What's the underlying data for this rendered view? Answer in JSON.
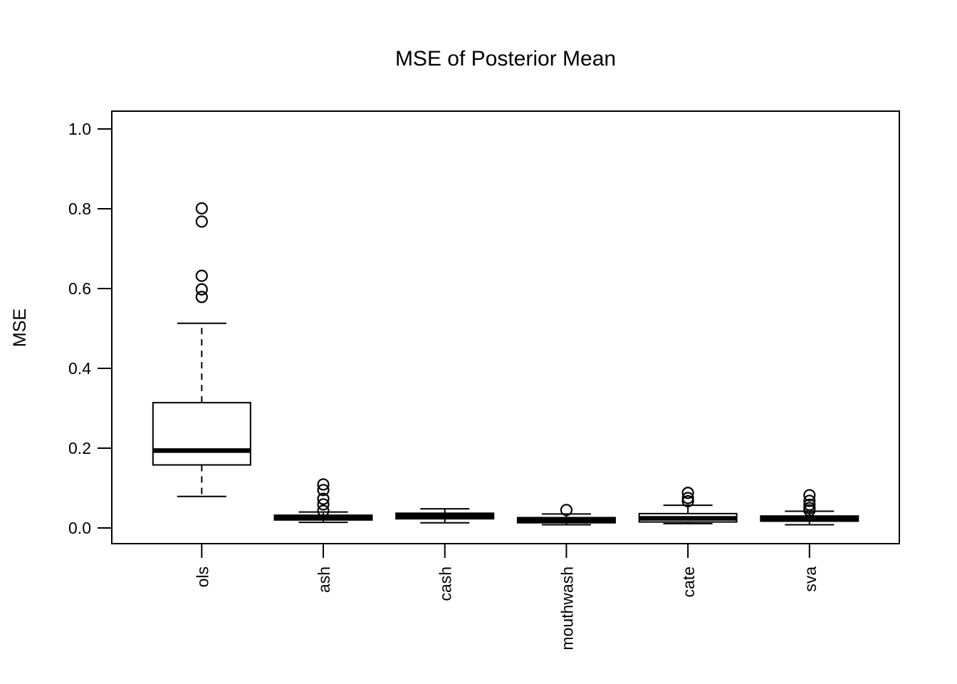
{
  "chart_data": {
    "type": "boxplot",
    "title": "MSE of Posterior Mean",
    "xlabel": "",
    "ylabel": "MSE",
    "ylim": [
      0.0,
      1.0
    ],
    "yticks": [
      0.0,
      0.2,
      0.4,
      0.6,
      0.8,
      1.0
    ],
    "ytick_labels": [
      "0.0",
      "0.2",
      "0.4",
      "0.6",
      "0.8",
      "1.0"
    ],
    "grid": false,
    "legend": "none",
    "frame_color": "#000000",
    "box_fill_color": "#ffffff",
    "categories": [
      "ols",
      "ash",
      "cash",
      "mouthwash",
      "cate",
      "sva"
    ],
    "series": [
      {
        "name": "ols",
        "whisker_low": 0.079,
        "q1": 0.158,
        "median": 0.194,
        "q3": 0.314,
        "whisker_high": 0.513,
        "outliers": [
          0.579,
          0.598,
          0.632,
          0.768,
          0.801
        ]
      },
      {
        "name": "ash",
        "whisker_low": 0.014,
        "q1": 0.02,
        "median": 0.026,
        "q3": 0.032,
        "whisker_high": 0.04,
        "outliers": [
          0.043,
          0.059,
          0.073,
          0.095,
          0.109
        ]
      },
      {
        "name": "cash",
        "whisker_low": 0.013,
        "q1": 0.023,
        "median": 0.03,
        "q3": 0.037,
        "whisker_high": 0.048,
        "outliers": []
      },
      {
        "name": "mouthwash",
        "whisker_low": 0.008,
        "q1": 0.013,
        "median": 0.02,
        "q3": 0.026,
        "whisker_high": 0.035,
        "outliers": [
          0.045
        ]
      },
      {
        "name": "cate",
        "whisker_low": 0.011,
        "q1": 0.015,
        "median": 0.024,
        "q3": 0.036,
        "whisker_high": 0.057,
        "outliers": [
          0.067,
          0.075,
          0.088
        ]
      },
      {
        "name": "sva",
        "whisker_low": 0.008,
        "q1": 0.017,
        "median": 0.023,
        "q3": 0.03,
        "whisker_high": 0.042,
        "outliers": [
          0.044,
          0.05,
          0.058,
          0.068,
          0.082
        ]
      }
    ]
  }
}
